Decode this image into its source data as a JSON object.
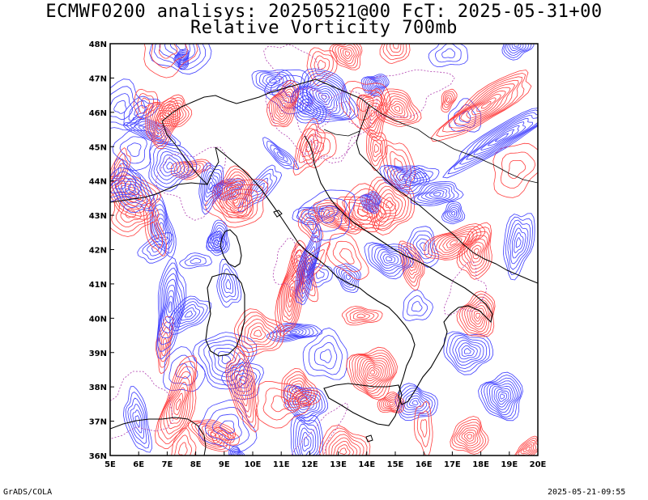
{
  "title": "ECMWF0200 analisys: 20250521@00 FcT: 2025-05-31+00",
  "subtitle": "Relative Vorticity 700mb",
  "map": {
    "lon_range": [
      5,
      20
    ],
    "lat_range": [
      36,
      48
    ],
    "lon_ticks": [
      "5E",
      "6E",
      "7E",
      "8E",
      "9E",
      "10E",
      "11E",
      "12E",
      "13E",
      "14E",
      "15E",
      "16E",
      "17E",
      "18E",
      "19E",
      "20E"
    ],
    "lat_ticks": [
      "36N",
      "37N",
      "38N",
      "39N",
      "40N",
      "41N",
      "42N",
      "43N",
      "44N",
      "45N",
      "46N",
      "47N",
      "48N"
    ],
    "positive_color": "#ff3c3c",
    "negative_color": "#3c3cff",
    "zero_color": "#b040b0",
    "coast_color": "#000000"
  },
  "footer": {
    "left": "GrADS/COLA",
    "right": "2025-05-21-09:55"
  }
}
